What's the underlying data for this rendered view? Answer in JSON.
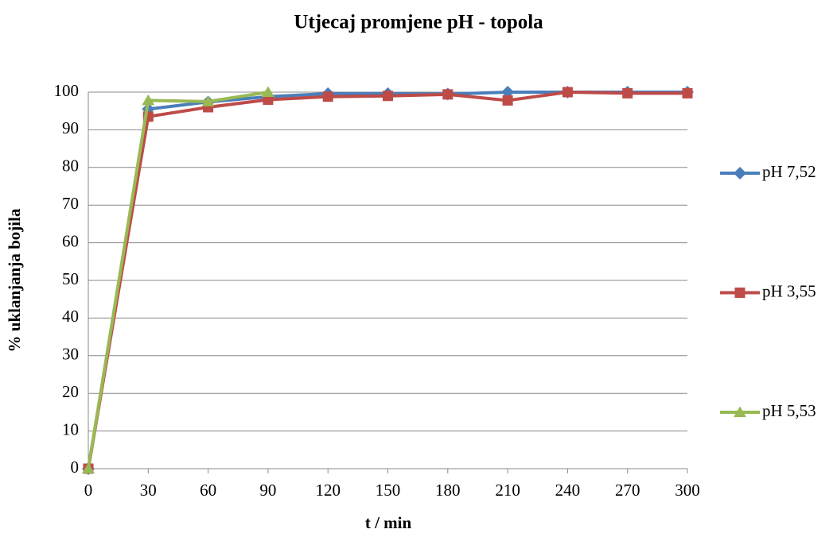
{
  "chart_data": {
    "type": "line",
    "title": "Utjecaj promjene pH - topola",
    "x_label": "t / min",
    "y_label": "%  uklanjanja bojila",
    "x": [
      0,
      30,
      60,
      90,
      120,
      150,
      180,
      210,
      240,
      270,
      300
    ],
    "xlim": [
      0,
      300
    ],
    "xticks": [
      0,
      30,
      60,
      90,
      120,
      150,
      180,
      210,
      240,
      270,
      300
    ],
    "ylim": [
      0,
      100
    ],
    "yticks": [
      0,
      10,
      20,
      30,
      40,
      50,
      60,
      70,
      80,
      90,
      100
    ],
    "grid": true,
    "legend": "right",
    "series": [
      {
        "name": "pH 7,52",
        "color": "#4a7ebb",
        "marker": "diamond",
        "values": [
          0,
          95.5,
          97.4,
          98.8,
          99.6,
          99.6,
          99.5,
          100,
          100,
          100,
          100
        ]
      },
      {
        "name": "pH 3,55",
        "color": "#be4b48",
        "marker": "square",
        "values": [
          0,
          93.5,
          96,
          98,
          98.8,
          99,
          99.4,
          97.8,
          100,
          99.7,
          99.7
        ]
      },
      {
        "name": "pH 5,53",
        "color": "#98b954",
        "marker": "triangle",
        "values": [
          0,
          97.8,
          97.5,
          100,
          null,
          null,
          null,
          null,
          null,
          null,
          null
        ]
      }
    ]
  }
}
